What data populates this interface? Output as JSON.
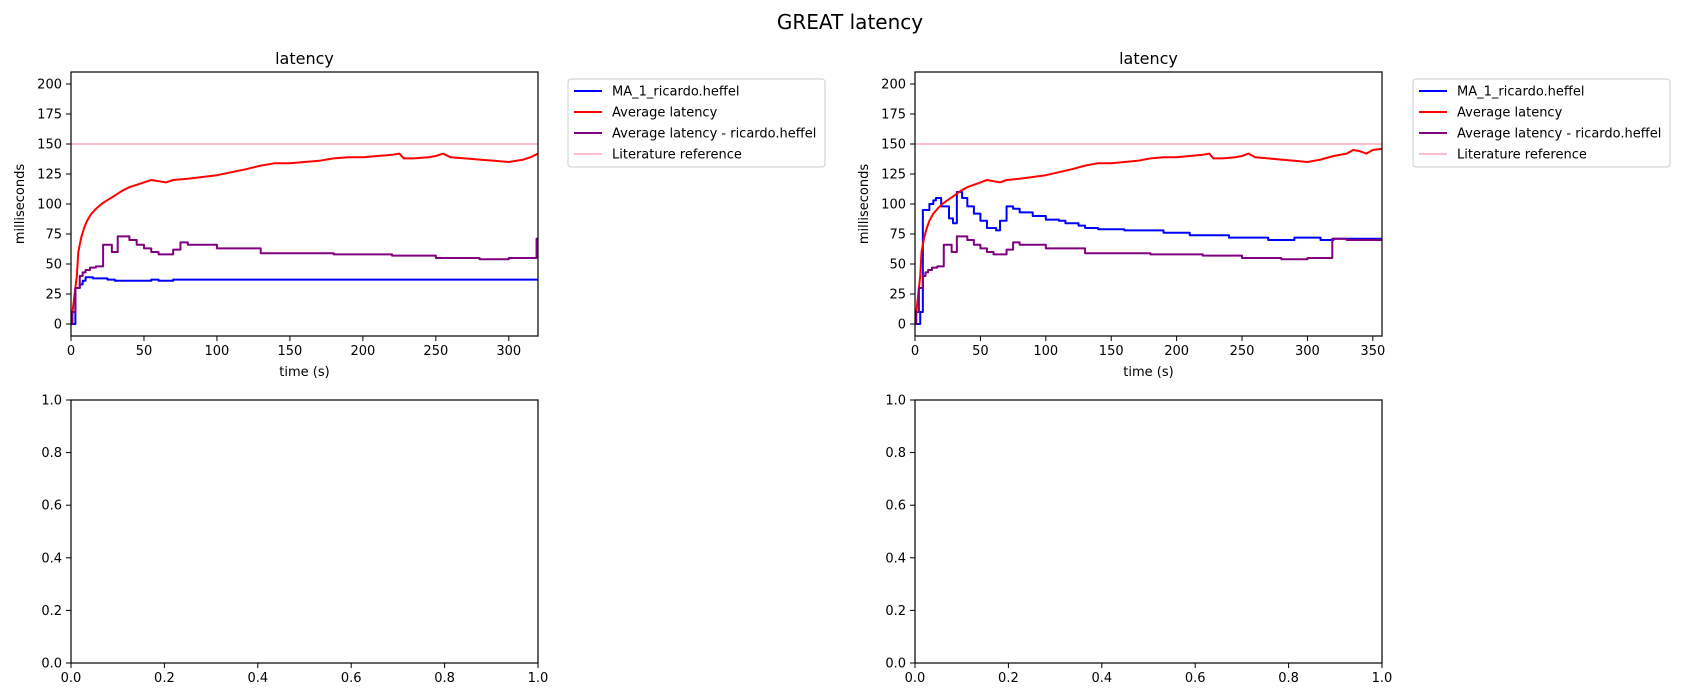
{
  "figure": {
    "suptitle": "GREAT latency"
  },
  "chart_data": [
    {
      "type": "line",
      "title": "latency",
      "xlabel": "time (s)",
      "ylabel": "milliseconds",
      "xlim": [
        0,
        320
      ],
      "ylim": [
        -10,
        210
      ],
      "xticks": [
        0,
        50,
        100,
        150,
        200,
        250,
        300
      ],
      "yticks": [
        0,
        25,
        50,
        75,
        100,
        125,
        150,
        175,
        200
      ],
      "grid": false,
      "legend_position": "outside-right",
      "series": [
        {
          "name": "MA_1_ricardo.heffel",
          "color": "#0000ff",
          "step": true,
          "x": [
            0,
            3,
            3,
            6,
            6,
            8,
            8,
            10,
            10,
            15,
            15,
            25,
            25,
            30,
            30,
            55,
            55,
            60,
            60,
            70,
            70,
            320
          ],
          "y": [
            0,
            0,
            30,
            30,
            33,
            33,
            36,
            36,
            39,
            39,
            38,
            38,
            37,
            37,
            36,
            36,
            37,
            37,
            36,
            36,
            37,
            37
          ]
        },
        {
          "name": "Average latency",
          "color": "#ff0000",
          "step": false,
          "x": [
            0,
            2,
            4,
            5,
            7,
            9,
            11,
            14,
            18,
            22,
            26,
            30,
            35,
            40,
            50,
            55,
            60,
            65,
            70,
            80,
            100,
            120,
            130,
            140,
            150,
            160,
            170,
            180,
            190,
            200,
            210,
            220,
            225,
            228,
            235,
            245,
            250,
            255,
            260,
            270,
            280,
            290,
            300,
            310,
            315,
            320
          ],
          "y": [
            0,
            20,
            40,
            60,
            72,
            80,
            86,
            92,
            97,
            101,
            104,
            107,
            111,
            114,
            118,
            120,
            119,
            118,
            120,
            121,
            124,
            129,
            132,
            134,
            134,
            135,
            136,
            138,
            139,
            139,
            140,
            141,
            142,
            138,
            138,
            139,
            140,
            142,
            139,
            138,
            137,
            136,
            135,
            137,
            139,
            142
          ]
        },
        {
          "name": "Average latency - ricardo.heffel",
          "color": "#800080",
          "step": true,
          "x": [
            0,
            1,
            1,
            3,
            3,
            6,
            6,
            8,
            8,
            10,
            10,
            13,
            13,
            17,
            17,
            22,
            22,
            28,
            28,
            32,
            32,
            40,
            40,
            45,
            45,
            50,
            50,
            55,
            55,
            60,
            60,
            70,
            70,
            75,
            75,
            80,
            80,
            100,
            100,
            130,
            130,
            180,
            180,
            220,
            220,
            250,
            250,
            280,
            280,
            300,
            300,
            319,
            319,
            320
          ],
          "y": [
            0,
            0,
            10,
            10,
            30,
            30,
            40,
            40,
            43,
            43,
            45,
            45,
            47,
            47,
            48,
            48,
            66,
            66,
            60,
            60,
            73,
            73,
            70,
            70,
            66,
            66,
            63,
            63,
            60,
            60,
            58,
            58,
            62,
            62,
            68,
            68,
            66,
            66,
            63,
            63,
            59,
            59,
            58,
            58,
            57,
            57,
            55,
            55,
            54,
            54,
            55,
            55,
            71,
            71
          ]
        },
        {
          "name": "Literature reference",
          "color": "#ffc0cb",
          "step": false,
          "x": [
            0,
            320
          ],
          "y": [
            150,
            150
          ]
        }
      ]
    },
    {
      "type": "line",
      "title": "latency",
      "xlabel": "time (s)",
      "ylabel": "milliseconds",
      "xlim": [
        0,
        357
      ],
      "ylim": [
        -10,
        210
      ],
      "xticks": [
        0,
        50,
        100,
        150,
        200,
        250,
        300,
        350
      ],
      "yticks": [
        0,
        25,
        50,
        75,
        100,
        125,
        150,
        175,
        200
      ],
      "grid": false,
      "legend_position": "outside-right",
      "series": [
        {
          "name": "MA_1_ricardo.heffel",
          "color": "#0000ff",
          "step": true,
          "x": [
            0,
            4,
            4,
            6,
            6,
            11,
            11,
            14,
            14,
            16,
            16,
            20,
            20,
            26,
            26,
            29,
            29,
            32,
            32,
            36,
            36,
            40,
            40,
            45,
            45,
            50,
            50,
            55,
            55,
            62,
            62,
            65,
            65,
            70,
            70,
            75,
            75,
            80,
            80,
            90,
            90,
            100,
            100,
            110,
            110,
            115,
            115,
            125,
            125,
            130,
            130,
            140,
            140,
            160,
            160,
            190,
            190,
            210,
            210,
            240,
            240,
            270,
            270,
            290,
            290,
            310,
            310,
            320,
            320,
            357
          ],
          "y": [
            0,
            0,
            10,
            10,
            95,
            95,
            100,
            100,
            103,
            103,
            105,
            105,
            98,
            98,
            88,
            88,
            84,
            84,
            110,
            110,
            105,
            105,
            98,
            98,
            92,
            92,
            86,
            86,
            80,
            80,
            78,
            78,
            86,
            86,
            98,
            98,
            96,
            96,
            93,
            93,
            90,
            90,
            87,
            87,
            86,
            86,
            84,
            84,
            82,
            82,
            80,
            80,
            79,
            79,
            78,
            78,
            76,
            76,
            74,
            74,
            72,
            72,
            70,
            70,
            72,
            72,
            70,
            70,
            71,
            71
          ]
        },
        {
          "name": "Average latency",
          "color": "#ff0000",
          "step": false,
          "x": [
            0,
            2,
            4,
            5,
            7,
            9,
            11,
            14,
            18,
            22,
            26,
            30,
            35,
            40,
            50,
            55,
            60,
            65,
            70,
            80,
            100,
            120,
            130,
            140,
            150,
            160,
            170,
            180,
            190,
            200,
            210,
            220,
            225,
            228,
            235,
            245,
            250,
            255,
            260,
            270,
            280,
            290,
            300,
            310,
            320,
            330,
            335,
            340,
            345,
            350,
            357
          ],
          "y": [
            0,
            20,
            40,
            60,
            72,
            80,
            86,
            92,
            97,
            101,
            104,
            107,
            111,
            114,
            118,
            120,
            119,
            118,
            120,
            121,
            124,
            129,
            132,
            134,
            134,
            135,
            136,
            138,
            139,
            139,
            140,
            141,
            142,
            138,
            138,
            139,
            140,
            142,
            139,
            138,
            137,
            136,
            135,
            137,
            140,
            142,
            145,
            144,
            142,
            145,
            146
          ]
        },
        {
          "name": "Average latency - ricardo.heffel",
          "color": "#800080",
          "step": true,
          "x": [
            0,
            1,
            1,
            3,
            3,
            6,
            6,
            8,
            8,
            10,
            10,
            13,
            13,
            17,
            17,
            22,
            22,
            28,
            28,
            32,
            32,
            40,
            40,
            45,
            45,
            50,
            50,
            55,
            55,
            60,
            60,
            70,
            70,
            75,
            75,
            80,
            80,
            100,
            100,
            130,
            130,
            180,
            180,
            220,
            220,
            250,
            250,
            280,
            280,
            300,
            300,
            319,
            319,
            330,
            330,
            357
          ],
          "y": [
            0,
            0,
            10,
            10,
            30,
            30,
            40,
            40,
            43,
            43,
            45,
            45,
            47,
            47,
            48,
            48,
            66,
            66,
            60,
            60,
            73,
            73,
            70,
            70,
            66,
            66,
            63,
            63,
            60,
            60,
            58,
            58,
            62,
            62,
            68,
            68,
            66,
            66,
            63,
            63,
            59,
            59,
            58,
            58,
            57,
            57,
            55,
            55,
            54,
            54,
            55,
            55,
            71,
            71,
            70,
            70
          ]
        },
        {
          "name": "Literature reference",
          "color": "#ffc0cb",
          "step": false,
          "x": [
            0,
            357
          ],
          "y": [
            150,
            150
          ]
        }
      ]
    },
    {
      "type": "line",
      "title": "",
      "xlim": [
        0,
        1
      ],
      "ylim": [
        0,
        1
      ],
      "xticks": [
        0.0,
        0.2,
        0.4,
        0.6,
        0.8,
        1.0
      ],
      "yticks": [
        0.0,
        0.2,
        0.4,
        0.6,
        0.8,
        1.0
      ],
      "tick_format": "1dp",
      "grid": false,
      "series": []
    },
    {
      "type": "line",
      "title": "",
      "xlim": [
        0,
        1
      ],
      "ylim": [
        0,
        1
      ],
      "xticks": [
        0.0,
        0.2,
        0.4,
        0.6,
        0.8,
        1.0
      ],
      "yticks": [
        0.0,
        0.2,
        0.4,
        0.6,
        0.8,
        1.0
      ],
      "tick_format": "1dp",
      "grid": false,
      "series": []
    }
  ]
}
